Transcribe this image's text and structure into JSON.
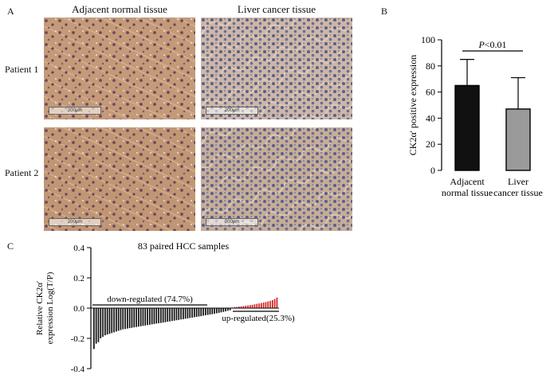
{
  "panels": {
    "a": "A",
    "b": "B",
    "c": "C"
  },
  "panel_a": {
    "columns": [
      "Adjacent normal tissue",
      "Liver cancer tissue"
    ],
    "rows": [
      "Patient 1",
      "Patient 2"
    ],
    "scale_label": "200μm"
  },
  "chart_data": [
    {
      "type": "bar",
      "ylabel": "CK2α' positive expression",
      "categories": [
        [
          "Adjacent",
          "normal tissue"
        ],
        [
          "Liver",
          "cancer tissue"
        ]
      ],
      "values": [
        65,
        47
      ],
      "error": [
        20,
        24
      ],
      "colors": [
        "#111111",
        "#9a9a9a"
      ],
      "ylim": [
        0,
        100
      ],
      "yticks": [
        0,
        20,
        40,
        60,
        80,
        100
      ],
      "annotation": {
        "prefix": "P",
        "text": "<0.01"
      }
    },
    {
      "type": "bar",
      "title": "83 paired HCC samples",
      "ylabel": [
        "Relative CK2α'",
        "expression Log(T/P)"
      ],
      "ylim": [
        -0.4,
        0.4
      ],
      "yticks": [
        -0.4,
        -0.2,
        0.0,
        0.2,
        0.4
      ],
      "ytick_labels": [
        "-0.4",
        "-0.2",
        "0.0",
        "0.2",
        "0.4"
      ],
      "annotations": [
        "down-regulated (74.7%)",
        "up-regulated(25.3%)"
      ],
      "colors": {
        "down": "#111111",
        "up": "#d42020"
      },
      "values": [
        -0.27,
        -0.235,
        -0.225,
        -0.2,
        -0.19,
        -0.18,
        -0.175,
        -0.17,
        -0.165,
        -0.16,
        -0.155,
        -0.15,
        -0.145,
        -0.14,
        -0.138,
        -0.135,
        -0.132,
        -0.13,
        -0.127,
        -0.125,
        -0.122,
        -0.12,
        -0.117,
        -0.115,
        -0.112,
        -0.11,
        -0.107,
        -0.105,
        -0.102,
        -0.1,
        -0.098,
        -0.095,
        -0.093,
        -0.09,
        -0.088,
        -0.085,
        -0.083,
        -0.08,
        -0.078,
        -0.075,
        -0.073,
        -0.07,
        -0.068,
        -0.065,
        -0.063,
        -0.06,
        -0.058,
        -0.055,
        -0.053,
        -0.05,
        -0.047,
        -0.045,
        -0.042,
        -0.04,
        -0.037,
        -0.034,
        -0.031,
        -0.028,
        -0.025,
        -0.022,
        -0.018,
        -0.014,
        0.004,
        0.006,
        0.008,
        0.01,
        0.012,
        0.014,
        0.016,
        0.018,
        0.02,
        0.022,
        0.025,
        0.028,
        0.031,
        0.034,
        0.037,
        0.04,
        0.044,
        0.048,
        0.053,
        0.06,
        0.07
      ]
    }
  ]
}
